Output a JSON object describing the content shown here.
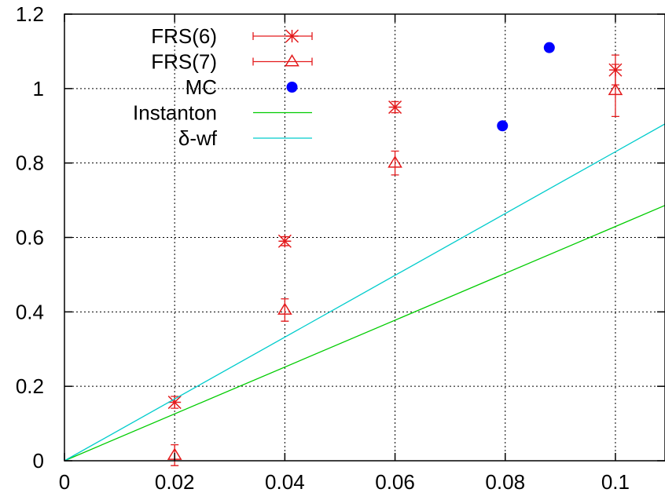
{
  "chart_data": {
    "type": "scatter",
    "title": "",
    "xlabel": "",
    "ylabel": "",
    "xlim": [
      0,
      0.109
    ],
    "ylim": [
      0,
      1.2
    ],
    "x_ticks": [
      0,
      0.02,
      0.04,
      0.06,
      0.08,
      0.1
    ],
    "x_tick_labels": [
      "0",
      "0.02",
      "0.04",
      "0.06",
      "0.08",
      "0.1"
    ],
    "y_ticks": [
      0,
      0.2,
      0.4,
      0.6,
      0.8,
      1.0,
      1.2
    ],
    "y_tick_labels": [
      "0",
      "0.2",
      "0.4",
      "0.6",
      "0.8",
      "1",
      "1.2"
    ],
    "grid": true,
    "legend_position": "top-left",
    "series": [
      {
        "name": "FRS(6)",
        "kind": "points-errorbars",
        "marker": "star",
        "color": "#e31a1c",
        "points": [
          {
            "x": 0.02,
            "y": 0.157,
            "err": 0.016
          },
          {
            "x": 0.04,
            "y": 0.59,
            "err": 0.012
          },
          {
            "x": 0.06,
            "y": 0.95,
            "err": 0.015
          },
          {
            "x": 0.1,
            "y": 1.05,
            "err": 0.04
          }
        ]
      },
      {
        "name": "FRS(7)",
        "kind": "points-errorbars",
        "marker": "triangle",
        "color": "#e31a1c",
        "points": [
          {
            "x": 0.02,
            "y": 0.015,
            "err": 0.028
          },
          {
            "x": 0.04,
            "y": 0.405,
            "err": 0.03
          },
          {
            "x": 0.06,
            "y": 0.8,
            "err": 0.032
          },
          {
            "x": 0.1,
            "y": 0.995,
            "err": 0.07
          }
        ]
      },
      {
        "name": "MC",
        "kind": "points",
        "marker": "circle",
        "color": "#0000ff",
        "points": [
          {
            "x": 0.0795,
            "y": 0.9
          },
          {
            "x": 0.088,
            "y": 1.11
          }
        ]
      },
      {
        "name": "Instanton",
        "kind": "line",
        "color": "#00cc00",
        "points": [
          {
            "x": 0,
            "y": 0
          },
          {
            "x": 0.109,
            "y": 0.686
          }
        ]
      },
      {
        "name": "δ-wf",
        "kind": "line",
        "color": "#00cccc",
        "points": [
          {
            "x": 0,
            "y": 0
          },
          {
            "x": 0.109,
            "y": 0.905
          }
        ]
      }
    ]
  }
}
